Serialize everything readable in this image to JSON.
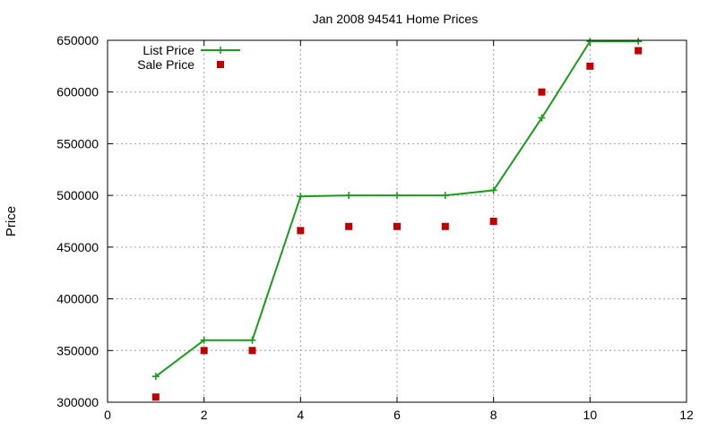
{
  "chart_data": {
    "type": "line",
    "title": "Jan 2008 94541 Home Prices",
    "xlabel": "",
    "ylabel": "Price",
    "xlim": [
      0,
      12
    ],
    "ylim": [
      300000,
      650000
    ],
    "xticks": [
      0,
      2,
      4,
      6,
      8,
      10,
      12
    ],
    "yticks": [
      300000,
      350000,
      400000,
      450000,
      500000,
      550000,
      600000,
      650000
    ],
    "grid": true,
    "legend_position": "top-left",
    "series": [
      {
        "name": "List Price",
        "style": "line-points",
        "marker": "plus",
        "color": "#1a9c1a",
        "x": [
          1,
          2,
          3,
          4,
          5,
          6,
          7,
          8,
          9,
          10,
          11
        ],
        "y": [
          325000,
          360000,
          360000,
          499000,
          500000,
          500000,
          500000,
          505000,
          575000,
          649000,
          649000
        ]
      },
      {
        "name": "Sale Price",
        "style": "points",
        "marker": "square",
        "color": "#c00000",
        "x": [
          1,
          2,
          3,
          4,
          5,
          6,
          7,
          8,
          9,
          10,
          11
        ],
        "y": [
          305000,
          350000,
          350000,
          466000,
          470000,
          470000,
          470000,
          475000,
          600000,
          625000,
          640000
        ]
      }
    ]
  }
}
